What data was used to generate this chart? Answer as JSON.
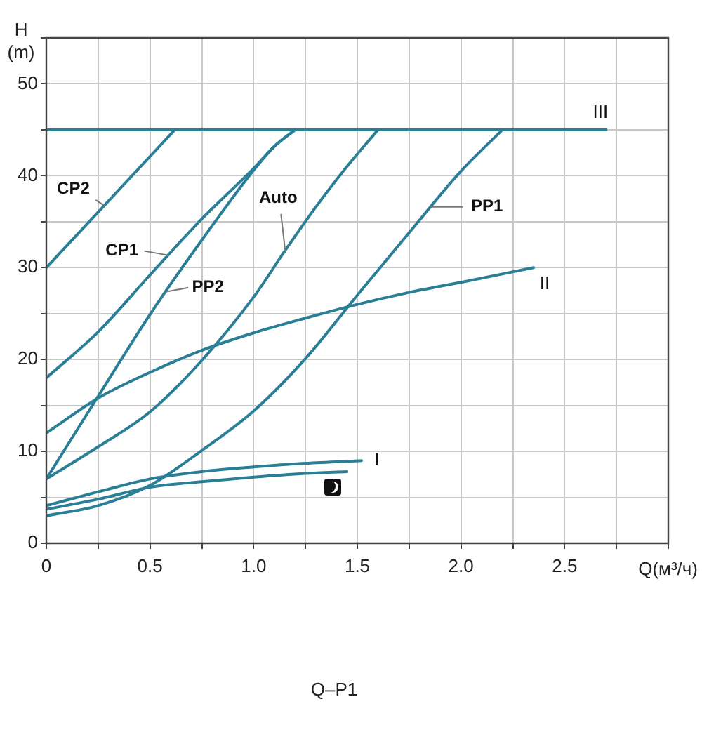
{
  "chart_data": {
    "type": "line",
    "title": "Q–P1",
    "xlabel": "Q(м³/ч)",
    "ylabel": "H (m)",
    "xlim": [
      0,
      3
    ],
    "ylim": [
      0,
      55
    ],
    "xticks": [
      0,
      {
        "value": 0.25,
        "label": null
      },
      0.5,
      {
        "value": 0.75,
        "label": null
      },
      {
        "value": 1,
        "label": "1.0"
      },
      {
        "value": 1.25,
        "label": null
      },
      1.5,
      {
        "value": 1.75,
        "label": null
      },
      {
        "value": 2,
        "label": "2.0"
      },
      {
        "value": 2.25,
        "label": null
      },
      2.5,
      {
        "value": 2.75,
        "label": null
      },
      {
        "value": 3,
        "label": null
      }
    ],
    "yticks": [
      0,
      {
        "value": 5,
        "label": null
      },
      10,
      {
        "value": 15,
        "label": null
      },
      20,
      {
        "value": 25,
        "label": null
      },
      30,
      {
        "value": 35,
        "label": null
      },
      40,
      {
        "value": 45,
        "label": null
      },
      50,
      {
        "value": 55,
        "label": null
      }
    ],
    "grid": true,
    "legend": false,
    "marker": "none",
    "line_style": "solid",
    "series": [
      {
        "name": "CP2",
        "color": "#2a7f97",
        "x": [
          0,
          0.62
        ],
        "values": [
          30,
          45
        ]
      },
      {
        "name": "CP1",
        "color": "#2a7f97",
        "x": [
          0,
          0.25,
          0.5,
          0.75,
          1.0,
          1.1,
          1.2
        ],
        "values": [
          18,
          23,
          29.2,
          35.3,
          40.8,
          43.2,
          45
        ]
      },
      {
        "name": "PP2",
        "color": "#2a7f97",
        "x": [
          0,
          0.25,
          0.5,
          0.75,
          1.0,
          1.1,
          1.2
        ],
        "values": [
          7,
          16,
          24.9,
          33,
          40.6,
          43.2,
          45
        ]
      },
      {
        "name": "Auto",
        "color": "#2a7f97",
        "x": [
          0,
          0.25,
          0.5,
          0.75,
          1.0,
          1.15,
          1.3,
          1.45,
          1.6
        ],
        "values": [
          7,
          10.5,
          14.3,
          19.9,
          26.8,
          31.8,
          36.6,
          41,
          45
        ]
      },
      {
        "name": "PP1",
        "color": "#2a7f97",
        "x": [
          0,
          0.25,
          0.5,
          0.75,
          1.0,
          1.25,
          1.5,
          1.75,
          2.0,
          2.2
        ],
        "values": [
          3,
          4.1,
          6.3,
          10.1,
          14.4,
          20.1,
          27,
          33.8,
          40.5,
          45
        ]
      },
      {
        "name": "III",
        "color": "#2a7f97",
        "x": [
          0,
          2.7
        ],
        "values": [
          45,
          45
        ]
      },
      {
        "name": "II",
        "color": "#2a7f97",
        "x": [
          0,
          0.25,
          0.5,
          0.75,
          1.0,
          1.25,
          1.5,
          1.75,
          2.0,
          2.35
        ],
        "values": [
          12,
          15.8,
          18.6,
          21,
          22.9,
          24.5,
          26,
          27.3,
          28.4,
          30
        ]
      },
      {
        "name": "I",
        "color": "#2a7f97",
        "x": [
          0,
          0.25,
          0.5,
          0.75,
          1.0,
          1.25,
          1.52
        ],
        "values": [
          4.1,
          5.6,
          7,
          7.8,
          8.3,
          8.7,
          9
        ]
      },
      {
        "color": "#2a7f97",
        "x": [
          0,
          0.25,
          0.5,
          0.75,
          1.0,
          1.25,
          1.45
        ],
        "values": [
          3.7,
          4.8,
          6.1,
          6.7,
          7.2,
          7.6,
          7.8
        ]
      }
    ]
  }
}
